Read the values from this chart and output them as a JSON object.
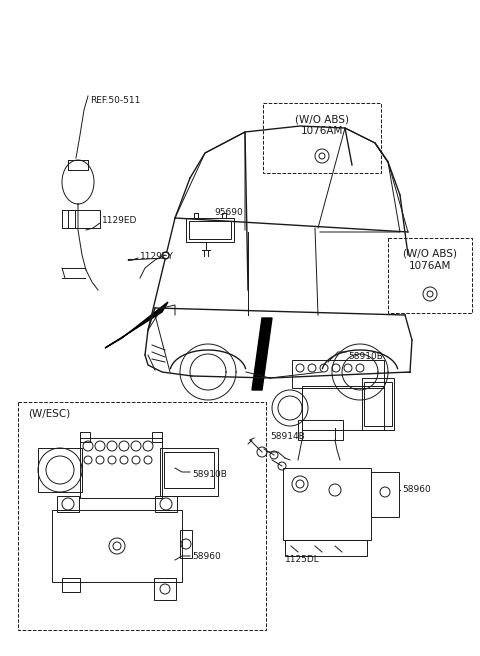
{
  "background_color": "#ffffff",
  "line_color": "#1a1a1a",
  "figsize": [
    4.8,
    6.56
  ],
  "dpi": 100,
  "labels": {
    "ref_50_511": "REF.50-511",
    "part_1129ED": "1129ED",
    "part_1129EY": "1129EY",
    "part_95690": "95690",
    "part_wo_abs_top": "(W/O ABS)\n1076AM",
    "part_wo_abs_right": "(W/O ABS)\n1076AM",
    "part_58910B_top": "58910B",
    "part_58910B_box": "58910B",
    "part_58914B": "58914B",
    "part_58960_right": "58960",
    "part_58960_box": "58960",
    "part_1125DL": "1125DL",
    "box_wesc": "(W/ESC)"
  }
}
